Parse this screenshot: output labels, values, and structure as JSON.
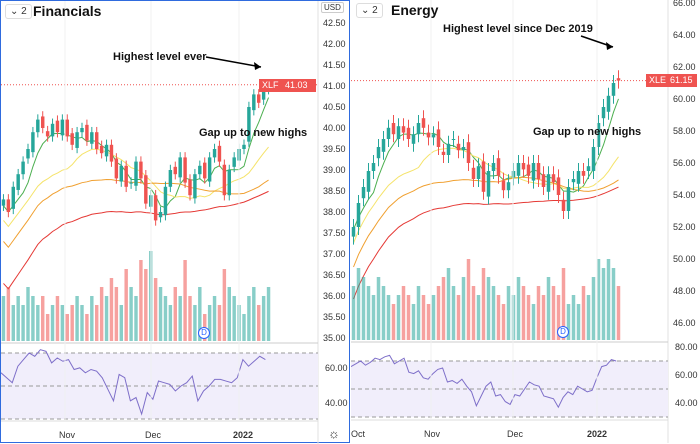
{
  "left": {
    "mode": "2",
    "title": "Financials",
    "symbol": "XLF",
    "last": "41.03",
    "currency": "USD",
    "ann1": "Highest level ever",
    "ann2": "Gap up to new highs",
    "yticks": [
      "42.50",
      "42.00",
      "41.50",
      "41.00",
      "40.50",
      "40.00",
      "39.50",
      "39.00",
      "38.50",
      "38.00",
      "37.50",
      "37.00",
      "36.50",
      "36.00",
      "35.50",
      "35.00"
    ],
    "rsi_ticks": [
      "60.00",
      "40.00"
    ],
    "xticks": [
      "Nov",
      "Dec",
      "2022"
    ],
    "dividend": "D"
  },
  "right": {
    "mode": "2",
    "title": "Energy",
    "symbol": "XLE",
    "last": "61.15",
    "ann1": "Highest level since Dec 2019",
    "ann2": "Gap up to new highs",
    "yticks": [
      "66.00",
      "64.00",
      "62.00",
      "60.00",
      "58.00",
      "56.00",
      "54.00",
      "52.00",
      "50.00",
      "48.00",
      "46.00"
    ],
    "rsi_ticks": [
      "80.00",
      "60.00",
      "40.00"
    ],
    "xticks": [
      "Oct",
      "Nov",
      "Dec",
      "2022"
    ],
    "dividend": "D"
  },
  "colors": {
    "up": "#26a69a",
    "down": "#ef5350",
    "rsi": "#7e6fc9",
    "ma20": "#4caf50",
    "ma50": "#f5e36a",
    "ma100": "#f0a030",
    "ma200": "#e53935"
  },
  "chart_data": [
    {
      "type": "candlestick",
      "title": "Financials",
      "ylim": [
        35,
        42.5
      ],
      "closes": [
        38.3,
        38.0,
        38.6,
        38.9,
        39.2,
        39.5,
        39.9,
        40.2,
        40.0,
        39.8,
        40.1,
        39.9,
        40.2,
        39.8,
        39.6,
        39.9,
        40.0,
        39.7,
        39.9,
        39.5,
        39.4,
        39.6,
        39.2,
        38.8,
        39.1,
        38.6,
        38.7,
        39.2,
        38.8,
        38.2,
        38.4,
        37.8,
        38.0,
        38.6,
        39.0,
        38.9,
        39.3,
        38.7,
        38.4,
        38.9,
        39.1,
        38.8,
        39.3,
        39.5,
        39.2,
        38.4,
        39.0,
        39.3,
        39.5,
        39.6,
        40.5,
        40.8,
        40.6,
        41.0,
        41.03
      ],
      "volume": [
        5,
        6,
        4,
        5,
        4,
        6,
        5,
        4,
        5,
        3,
        4,
        5,
        4,
        3,
        4,
        5,
        4,
        3,
        5,
        4,
        6,
        5,
        7,
        6,
        4,
        8,
        6,
        5,
        9,
        8,
        10,
        7,
        6,
        5,
        4,
        6,
        5,
        9,
        5,
        4,
        6,
        3,
        4,
        5,
        4,
        8,
        6,
        5,
        4,
        3,
        5,
        6,
        4,
        5,
        6
      ],
      "rsi": [
        58,
        55,
        52,
        62,
        66,
        70,
        68,
        72,
        71,
        64,
        67,
        65,
        66,
        60,
        61,
        58,
        60,
        59,
        55,
        48,
        41,
        57,
        55,
        41,
        43,
        33,
        46,
        42,
        53,
        52,
        51,
        47,
        50,
        52,
        56,
        41,
        47,
        50,
        54,
        54,
        53,
        52,
        55,
        66,
        62,
        65,
        68,
        66
      ]
    },
    {
      "type": "candlestick",
      "title": "Energy",
      "ylim": [
        45,
        66
      ],
      "closes": [
        52,
        53.5,
        54.5,
        55.5,
        56,
        57,
        57.5,
        58.2,
        57.8,
        58.3,
        57.9,
        57.5,
        57.8,
        58.5,
        58.2,
        57.6,
        57.8,
        57.0,
        56.5,
        57.2,
        57.5,
        56.8,
        57.0,
        56.0,
        55.0,
        55.8,
        54.2,
        55.5,
        56.0,
        55.2,
        54.3,
        54.8,
        55.5,
        56.0,
        55.6,
        55.2,
        56.0,
        55.0,
        54.5,
        55.3,
        54.8,
        54.0,
        53.0,
        54.5,
        55.0,
        55.5,
        55.2,
        55.8,
        57.0,
        58.5,
        59.5,
        60.2,
        61.0,
        61.15
      ],
      "volume": [
        6,
        8,
        7,
        6,
        5,
        7,
        6,
        5,
        4,
        5,
        6,
        5,
        4,
        6,
        5,
        4,
        5,
        6,
        7,
        8,
        6,
        5,
        7,
        9,
        6,
        5,
        8,
        7,
        6,
        5,
        4,
        6,
        5,
        7,
        6,
        5,
        4,
        6,
        5,
        7,
        6,
        5,
        8,
        4,
        5,
        4,
        6,
        5,
        7,
        9,
        8,
        9,
        8,
        6
      ],
      "rsi": [
        66,
        68,
        70,
        67,
        69,
        72,
        71,
        73,
        74,
        68,
        70,
        72,
        62,
        61,
        63,
        58,
        57,
        61,
        64,
        65,
        55,
        56,
        54,
        57,
        52,
        48,
        38,
        45,
        52,
        55,
        45,
        46,
        41,
        39,
        46,
        45,
        50,
        55,
        53,
        52,
        45,
        44,
        43,
        37,
        44,
        48,
        46,
        52,
        50,
        48,
        49,
        58,
        66,
        67,
        71,
        70
      ]
    }
  ]
}
